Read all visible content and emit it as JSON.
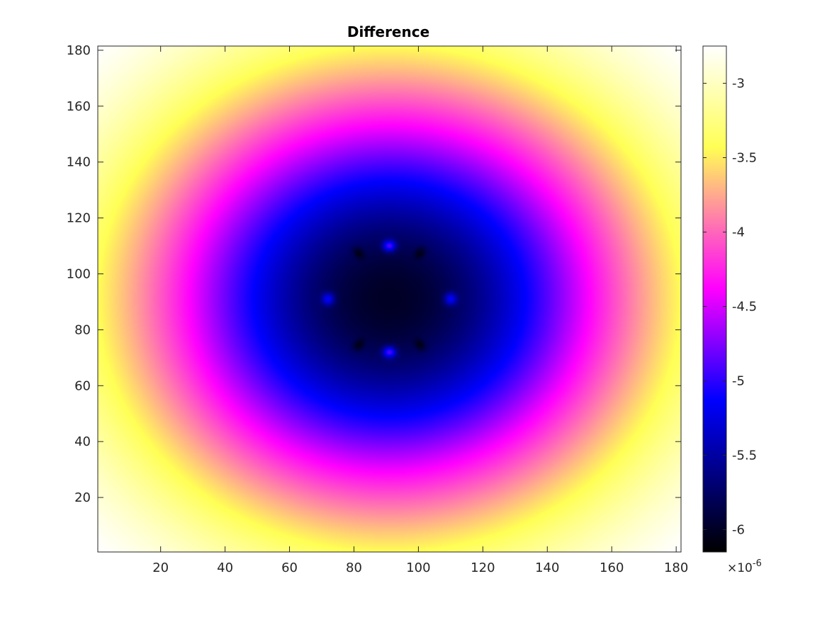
{
  "chart_data": {
    "type": "heatmap",
    "title": "Difference",
    "xlabel": "",
    "ylabel": "",
    "xlim": [
      0.5,
      181.5
    ],
    "ylim": [
      0.5,
      181.5
    ],
    "x_ticks": [
      20,
      40,
      60,
      80,
      100,
      120,
      140,
      160,
      180
    ],
    "y_ticks": [
      20,
      40,
      60,
      80,
      100,
      120,
      140,
      160,
      180
    ],
    "grid": false,
    "field": {
      "center": [
        91,
        91
      ],
      "value_at_center": -6.0,
      "value_at_corners": -2.75,
      "dark_ring_radius": 19,
      "dark_ring_bumps": 12,
      "bright_spots": [
        [
          91,
          110
        ],
        [
          91,
          72
        ],
        [
          72,
          91
        ],
        [
          110,
          91
        ]
      ]
    },
    "colorbar": {
      "colormap": [
        "#000000",
        "#0000ff",
        "#ff00ff",
        "#ffff55",
        "#ffffff"
      ],
      "clim": [
        -6.15,
        -2.75
      ],
      "ticks": [
        -3,
        -3.5,
        -4,
        -4.5,
        -5,
        -5.5,
        -6
      ],
      "tick_labels": [
        "-3",
        "-3.5",
        "-4",
        "-4.5",
        "-5",
        "-5.5",
        "-6"
      ],
      "exponent_base": "×10",
      "exponent_power": "-6"
    }
  }
}
